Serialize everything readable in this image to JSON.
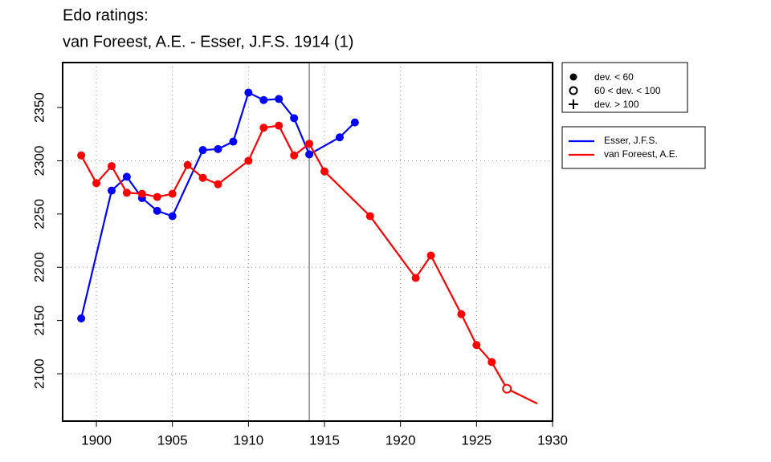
{
  "chart_data": {
    "type": "line",
    "title": "Edo ratings:",
    "subtitle": "van Foreest, A.E. - Esser, J.F.S. 1914 (1)",
    "xlim": [
      1897.78,
      1930
    ],
    "xticks": [
      1900,
      1905,
      1910,
      1915,
      1920,
      1925,
      1930
    ],
    "ylim": [
      2055.6,
      2392.2
    ],
    "yticks": [
      2100,
      2150,
      2200,
      2250,
      2300,
      2350
    ],
    "xgrid": [
      1900,
      1905,
      1910,
      1915,
      1920,
      1925
    ],
    "ygrid": [
      2100,
      2200,
      2300
    ],
    "vline": 1914,
    "marker_legend": [
      "dev. < 60",
      "60 < dev. < 100",
      "dev. > 100"
    ],
    "series": [
      {
        "name": "Esser, J.F.S.",
        "color": "#0000ff",
        "x": [
          1899,
          1901,
          1902,
          1903,
          1904,
          1905,
          1907,
          1908,
          1909,
          1910,
          1911,
          1912,
          1913,
          1914,
          1916,
          1917
        ],
        "values": [
          2152,
          2272,
          2285,
          2265,
          2253,
          2248,
          2310,
          2311,
          2318,
          2364,
          2357,
          2358,
          2340,
          2306,
          2322,
          2336
        ],
        "markers": [
          "filled",
          "filled",
          "filled",
          "filled",
          "filled",
          "filled",
          "filled",
          "filled",
          "filled",
          "filled",
          "filled",
          "filled",
          "filled",
          "filled",
          "filled",
          "filled"
        ]
      },
      {
        "name": "van Foreest, A.E.",
        "color": "#ff0000",
        "x": [
          1899,
          1900,
          1901,
          1902,
          1903,
          1904,
          1905,
          1906,
          1907,
          1908,
          1910,
          1911,
          1912,
          1913,
          1914,
          1915,
          1918,
          1921,
          1922,
          1924,
          1925,
          1926,
          1927,
          1929
        ],
        "values": [
          2305,
          2279,
          2295,
          2270,
          2269,
          2266,
          2269,
          2296,
          2284,
          2278,
          2300,
          2331,
          2333,
          2305,
          2316,
          2290,
          2248,
          2190,
          2211,
          2156,
          2127,
          2111,
          2086,
          2072
        ],
        "markers": [
          "filled",
          "filled",
          "filled",
          "filled",
          "filled",
          "filled",
          "filled",
          "filled",
          "filled",
          "filled",
          "filled",
          "filled",
          "filled",
          "filled",
          "filled",
          "filled",
          "filled",
          "filled",
          "filled",
          "filled",
          "filled",
          "filled",
          "open",
          "none"
        ]
      }
    ]
  }
}
